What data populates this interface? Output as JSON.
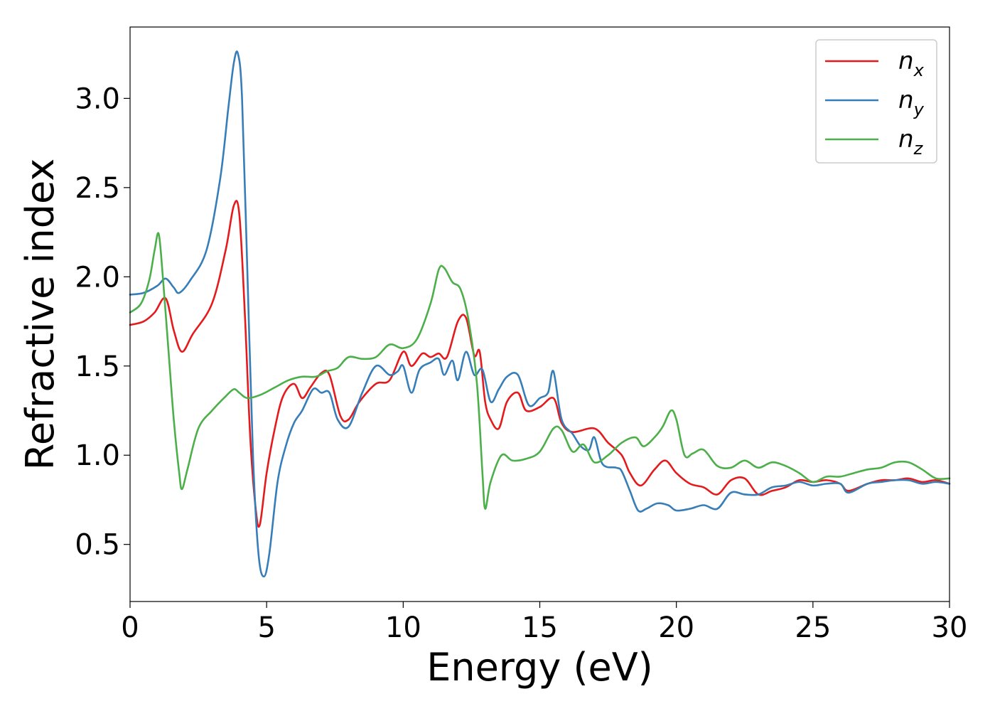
{
  "chart_data": {
    "type": "line",
    "title": "",
    "xlabel": "Energy (eV)",
    "ylabel": "Refractive index",
    "xlim": [
      0,
      30
    ],
    "ylim": [
      0.18,
      3.4
    ],
    "xticks": [
      0,
      5,
      10,
      15,
      20,
      25,
      30
    ],
    "xtick_labels": [
      "0",
      "5",
      "10",
      "15",
      "20",
      "25",
      "30"
    ],
    "yticks": [
      0.5,
      1.0,
      1.5,
      2.0,
      2.5,
      3.0
    ],
    "ytick_labels": [
      "0.5",
      "1.0",
      "1.5",
      "2.0",
      "2.5",
      "3.0"
    ],
    "grid": false,
    "legend_position": "top-right",
    "series": [
      {
        "name": "n",
        "subscript": "x",
        "color": "#e41a1c",
        "points": [
          [
            0,
            1.73
          ],
          [
            0.5,
            1.75
          ],
          [
            0.9,
            1.8
          ],
          [
            1.3,
            1.88
          ],
          [
            1.6,
            1.7
          ],
          [
            1.9,
            1.58
          ],
          [
            2.3,
            1.68
          ],
          [
            3.0,
            1.85
          ],
          [
            3.5,
            2.15
          ],
          [
            3.8,
            2.4
          ],
          [
            4.0,
            2.35
          ],
          [
            4.2,
            1.8
          ],
          [
            4.4,
            1.1
          ],
          [
            4.6,
            0.7
          ],
          [
            4.75,
            0.61
          ],
          [
            5.0,
            0.9
          ],
          [
            5.3,
            1.15
          ],
          [
            5.6,
            1.33
          ],
          [
            6.0,
            1.4
          ],
          [
            6.3,
            1.32
          ],
          [
            6.6,
            1.38
          ],
          [
            7.0,
            1.46
          ],
          [
            7.3,
            1.45
          ],
          [
            7.7,
            1.22
          ],
          [
            8.0,
            1.2
          ],
          [
            8.4,
            1.3
          ],
          [
            9.0,
            1.4
          ],
          [
            9.5,
            1.42
          ],
          [
            10.0,
            1.58
          ],
          [
            10.3,
            1.5
          ],
          [
            10.7,
            1.57
          ],
          [
            11.0,
            1.55
          ],
          [
            11.3,
            1.57
          ],
          [
            11.6,
            1.55
          ],
          [
            12.0,
            1.75
          ],
          [
            12.3,
            1.77
          ],
          [
            12.6,
            1.56
          ],
          [
            12.8,
            1.58
          ],
          [
            13.0,
            1.3
          ],
          [
            13.2,
            1.2
          ],
          [
            13.5,
            1.15
          ],
          [
            13.8,
            1.3
          ],
          [
            14.2,
            1.35
          ],
          [
            14.5,
            1.25
          ],
          [
            15.0,
            1.27
          ],
          [
            15.5,
            1.32
          ],
          [
            15.8,
            1.18
          ],
          [
            16.2,
            1.13
          ],
          [
            17.0,
            1.15
          ],
          [
            17.5,
            1.07
          ],
          [
            18.0,
            1.0
          ],
          [
            18.3,
            0.9
          ],
          [
            18.7,
            0.83
          ],
          [
            19.2,
            0.92
          ],
          [
            19.6,
            0.97
          ],
          [
            20.0,
            0.9
          ],
          [
            20.5,
            0.84
          ],
          [
            21.0,
            0.82
          ],
          [
            21.5,
            0.78
          ],
          [
            22.0,
            0.86
          ],
          [
            22.5,
            0.87
          ],
          [
            23.0,
            0.78
          ],
          [
            23.5,
            0.8
          ],
          [
            24.0,
            0.82
          ],
          [
            24.5,
            0.86
          ],
          [
            25.0,
            0.85
          ],
          [
            25.5,
            0.86
          ],
          [
            26.0,
            0.84
          ],
          [
            26.3,
            0.8
          ],
          [
            27.0,
            0.84
          ],
          [
            27.5,
            0.86
          ],
          [
            28.0,
            0.86
          ],
          [
            28.5,
            0.87
          ],
          [
            29.0,
            0.85
          ],
          [
            29.5,
            0.86
          ],
          [
            30.0,
            0.84
          ]
        ]
      },
      {
        "name": "n",
        "subscript": "y",
        "color": "#377eb8",
        "points": [
          [
            0,
            1.9
          ],
          [
            0.5,
            1.91
          ],
          [
            1.0,
            1.95
          ],
          [
            1.3,
            1.99
          ],
          [
            1.6,
            1.94
          ],
          [
            1.8,
            1.91
          ],
          [
            2.2,
            1.98
          ],
          [
            2.8,
            2.15
          ],
          [
            3.3,
            2.55
          ],
          [
            3.6,
            2.95
          ],
          [
            3.8,
            3.2
          ],
          [
            3.95,
            3.25
          ],
          [
            4.1,
            3.0
          ],
          [
            4.3,
            2.0
          ],
          [
            4.5,
            1.0
          ],
          [
            4.7,
            0.45
          ],
          [
            4.9,
            0.32
          ],
          [
            5.1,
            0.45
          ],
          [
            5.4,
            0.85
          ],
          [
            5.7,
            1.05
          ],
          [
            6.0,
            1.18
          ],
          [
            6.3,
            1.25
          ],
          [
            6.7,
            1.37
          ],
          [
            7.0,
            1.35
          ],
          [
            7.3,
            1.35
          ],
          [
            7.6,
            1.2
          ],
          [
            8.0,
            1.16
          ],
          [
            8.5,
            1.35
          ],
          [
            9.0,
            1.5
          ],
          [
            9.5,
            1.45
          ],
          [
            9.8,
            1.47
          ],
          [
            10.0,
            1.5
          ],
          [
            10.3,
            1.35
          ],
          [
            10.6,
            1.48
          ],
          [
            11.0,
            1.52
          ],
          [
            11.3,
            1.54
          ],
          [
            11.5,
            1.45
          ],
          [
            11.8,
            1.53
          ],
          [
            12.0,
            1.42
          ],
          [
            12.3,
            1.58
          ],
          [
            12.6,
            1.45
          ],
          [
            12.9,
            1.48
          ],
          [
            13.2,
            1.3
          ],
          [
            13.5,
            1.37
          ],
          [
            13.8,
            1.44
          ],
          [
            14.2,
            1.45
          ],
          [
            14.6,
            1.28
          ],
          [
            15.0,
            1.32
          ],
          [
            15.3,
            1.35
          ],
          [
            15.5,
            1.47
          ],
          [
            15.8,
            1.2
          ],
          [
            16.2,
            1.12
          ],
          [
            16.5,
            1.05
          ],
          [
            16.8,
            1.03
          ],
          [
            17.0,
            1.1
          ],
          [
            17.3,
            0.95
          ],
          [
            17.8,
            0.93
          ],
          [
            18.0,
            0.91
          ],
          [
            18.3,
            0.8
          ],
          [
            18.6,
            0.69
          ],
          [
            18.9,
            0.7
          ],
          [
            19.3,
            0.73
          ],
          [
            19.7,
            0.72
          ],
          [
            20.0,
            0.69
          ],
          [
            20.5,
            0.7
          ],
          [
            21.0,
            0.72
          ],
          [
            21.5,
            0.7
          ],
          [
            22.0,
            0.79
          ],
          [
            22.5,
            0.78
          ],
          [
            23.0,
            0.78
          ],
          [
            23.5,
            0.82
          ],
          [
            24.0,
            0.83
          ],
          [
            24.5,
            0.85
          ],
          [
            25.0,
            0.83
          ],
          [
            25.5,
            0.84
          ],
          [
            26.0,
            0.84
          ],
          [
            26.3,
            0.79
          ],
          [
            27.0,
            0.84
          ],
          [
            27.5,
            0.85
          ],
          [
            28.0,
            0.86
          ],
          [
            28.5,
            0.86
          ],
          [
            29.0,
            0.84
          ],
          [
            29.5,
            0.85
          ],
          [
            30.0,
            0.84
          ]
        ]
      },
      {
        "name": "n",
        "subscript": "z",
        "color": "#4daf4a",
        "points": [
          [
            0,
            1.8
          ],
          [
            0.4,
            1.85
          ],
          [
            0.7,
            1.98
          ],
          [
            0.9,
            2.15
          ],
          [
            1.05,
            2.24
          ],
          [
            1.2,
            2.0
          ],
          [
            1.4,
            1.6
          ],
          [
            1.6,
            1.2
          ],
          [
            1.8,
            0.9
          ],
          [
            1.9,
            0.81
          ],
          [
            2.1,
            0.92
          ],
          [
            2.5,
            1.15
          ],
          [
            3.0,
            1.25
          ],
          [
            3.5,
            1.33
          ],
          [
            3.8,
            1.37
          ],
          [
            4.0,
            1.35
          ],
          [
            4.3,
            1.32
          ],
          [
            4.8,
            1.34
          ],
          [
            5.3,
            1.38
          ],
          [
            5.8,
            1.42
          ],
          [
            6.3,
            1.44
          ],
          [
            6.8,
            1.44
          ],
          [
            7.2,
            1.47
          ],
          [
            7.6,
            1.49
          ],
          [
            8.0,
            1.55
          ],
          [
            8.5,
            1.54
          ],
          [
            9.0,
            1.55
          ],
          [
            9.5,
            1.62
          ],
          [
            10.0,
            1.6
          ],
          [
            10.5,
            1.65
          ],
          [
            11.0,
            1.85
          ],
          [
            11.3,
            2.04
          ],
          [
            11.5,
            2.05
          ],
          [
            11.8,
            1.97
          ],
          [
            12.1,
            1.93
          ],
          [
            12.4,
            1.75
          ],
          [
            12.7,
            1.4
          ],
          [
            12.9,
            0.9
          ],
          [
            13.0,
            0.7
          ],
          [
            13.2,
            0.85
          ],
          [
            13.6,
            1.0
          ],
          [
            14.0,
            0.97
          ],
          [
            14.5,
            0.98
          ],
          [
            15.0,
            1.02
          ],
          [
            15.5,
            1.15
          ],
          [
            15.8,
            1.14
          ],
          [
            16.2,
            1.02
          ],
          [
            16.6,
            1.06
          ],
          [
            17.0,
            0.96
          ],
          [
            17.5,
            1.0
          ],
          [
            18.0,
            1.07
          ],
          [
            18.5,
            1.1
          ],
          [
            18.8,
            1.05
          ],
          [
            19.2,
            1.1
          ],
          [
            19.5,
            1.16
          ],
          [
            19.8,
            1.25
          ],
          [
            20.0,
            1.2
          ],
          [
            20.3,
            1.0
          ],
          [
            20.6,
            1.01
          ],
          [
            21.0,
            1.03
          ],
          [
            21.5,
            0.94
          ],
          [
            22.0,
            0.93
          ],
          [
            22.5,
            0.97
          ],
          [
            23.0,
            0.93
          ],
          [
            23.5,
            0.96
          ],
          [
            24.0,
            0.94
          ],
          [
            24.5,
            0.9
          ],
          [
            25.0,
            0.85
          ],
          [
            25.5,
            0.88
          ],
          [
            26.0,
            0.88
          ],
          [
            26.5,
            0.9
          ],
          [
            27.0,
            0.92
          ],
          [
            27.5,
            0.93
          ],
          [
            28.0,
            0.96
          ],
          [
            28.5,
            0.96
          ],
          [
            29.0,
            0.92
          ],
          [
            29.5,
            0.87
          ],
          [
            30.0,
            0.87
          ]
        ]
      }
    ]
  }
}
